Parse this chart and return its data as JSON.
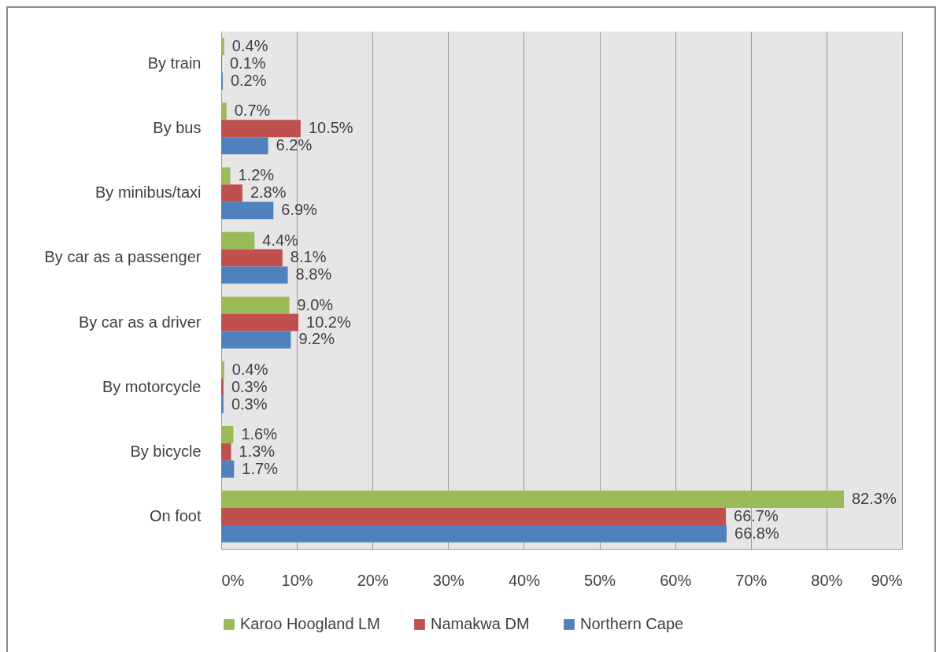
{
  "chart_data": {
    "type": "bar",
    "orientation": "horizontal",
    "categories": [
      "By train",
      "By bus",
      "By minibus/taxi",
      "By car as a passenger",
      "By car as a driver",
      "By motorcycle",
      "By bicycle",
      "On foot"
    ],
    "series": [
      {
        "name": "Karoo Hoogland LM",
        "color": "#9bbb59",
        "values": [
          0.4,
          0.7,
          1.2,
          4.4,
          9.0,
          0.4,
          1.6,
          82.3
        ],
        "value_labels": [
          "0.4%",
          "0.7%",
          "1.2%",
          "4.4%",
          "9.0%",
          "0.4%",
          "1.6%",
          "82.3%"
        ]
      },
      {
        "name": "Namakwa DM",
        "color": "#c0504d",
        "values": [
          0.1,
          10.5,
          2.8,
          8.1,
          10.2,
          0.3,
          1.3,
          66.7
        ],
        "value_labels": [
          "0.1%",
          "10.5%",
          "2.8%",
          "8.1%",
          "10.2%",
          "0.3%",
          "1.3%",
          "66.7%"
        ]
      },
      {
        "name": "Northern Cape",
        "color": "#4f81bd",
        "values": [
          0.2,
          6.2,
          6.9,
          8.8,
          9.2,
          0.3,
          1.7,
          66.8
        ],
        "value_labels": [
          "0.2%",
          "6.2%",
          "6.9%",
          "8.8%",
          "9.2%",
          "0.3%",
          "1.7%",
          "66.8%"
        ]
      }
    ],
    "xlim": [
      0,
      90
    ],
    "xticks": [
      {
        "value": 0,
        "label": "0%"
      },
      {
        "value": 10,
        "label": "10%"
      },
      {
        "value": 20,
        "label": "20%"
      },
      {
        "value": 30,
        "label": "30%"
      },
      {
        "value": 40,
        "label": "40%"
      },
      {
        "value": 50,
        "label": "50%"
      },
      {
        "value": 60,
        "label": "60%"
      },
      {
        "value": 70,
        "label": "70%"
      },
      {
        "value": 80,
        "label": "80%"
      },
      {
        "value": 90,
        "label": "90%"
      }
    ],
    "grid": "x",
    "legend": "bottom"
  }
}
